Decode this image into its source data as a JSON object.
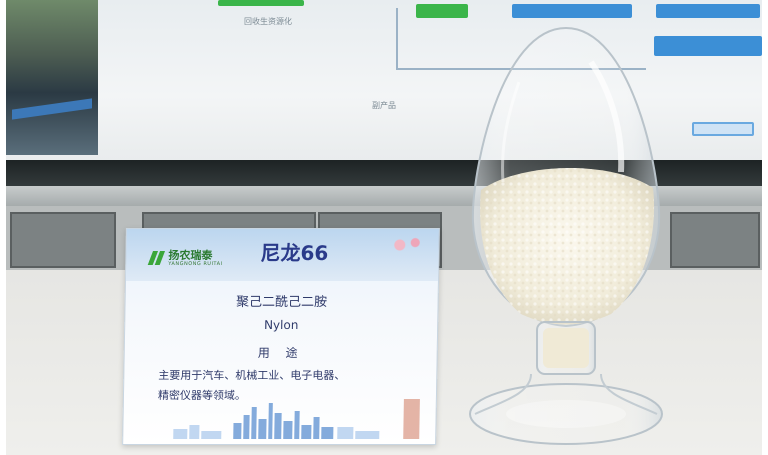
{
  "background": {
    "screen_text_1": "回收生资源化",
    "screen_text_2": "副产品"
  },
  "placard": {
    "logo_name": "扬农瑞泰",
    "logo_sub": "YANGNONG RUITAI",
    "title": "尼龙66",
    "chemical_name": "聚己二酰己二胺",
    "english_name": "Nylon",
    "usage_heading": "用 途",
    "usage_line1": "主要用于汽车、机械工业、电子电器、",
    "usage_line2": "精密仪器等领域。"
  },
  "colors": {
    "title": "#2a3a8a",
    "text": "#2f3a6a",
    "logo_green": "#3aa63a",
    "screen_blue": "#3c8fd6"
  }
}
